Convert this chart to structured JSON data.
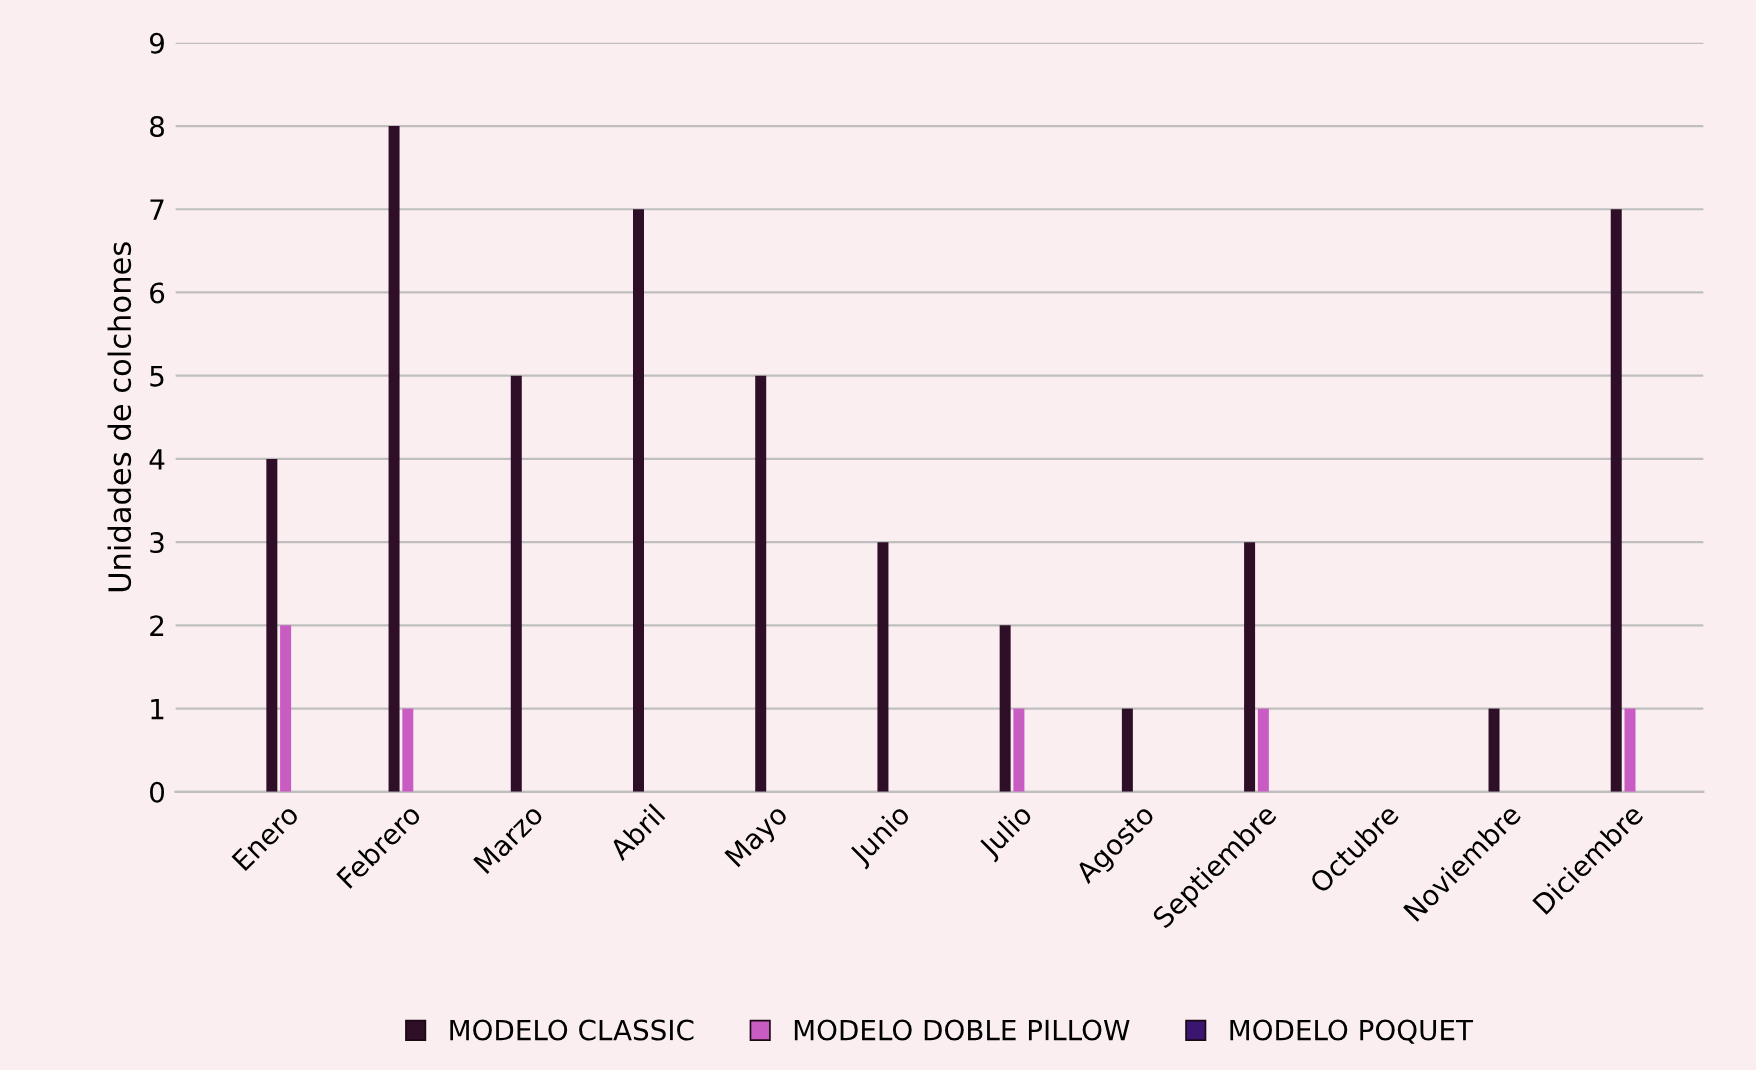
{
  "chart_data": {
    "type": "bar",
    "ylabel": "Unidades de colchones",
    "categories": [
      "Enero",
      "Febrero",
      "Marzo",
      "Abril",
      "Mayo",
      "Junio",
      "Julio",
      "Agosto",
      "Septiembre",
      "Octubre",
      "Noviembre",
      "Diciembre"
    ],
    "series": [
      {
        "name": "MODELO CLASSIC",
        "color": "#2e0f27",
        "values": [
          4,
          8,
          5,
          7,
          5,
          3,
          2,
          1,
          3,
          0,
          1,
          7
        ]
      },
      {
        "name": "MODELO DOBLE PILLOW",
        "color": "#c95cc2",
        "values": [
          2,
          1,
          0,
          0,
          0,
          0,
          1,
          0,
          1,
          0,
          0,
          1
        ]
      },
      {
        "name": "MODELO POQUET",
        "color": "#3b1670",
        "values": [
          0,
          0,
          0,
          0,
          0,
          0,
          0,
          0,
          0,
          0,
          0,
          0
        ]
      }
    ],
    "ylim": [
      0,
      9
    ],
    "yticks": [
      0,
      1,
      2,
      3,
      4,
      5,
      6,
      7,
      8,
      9
    ],
    "grid": "y",
    "legend": "bottom"
  }
}
